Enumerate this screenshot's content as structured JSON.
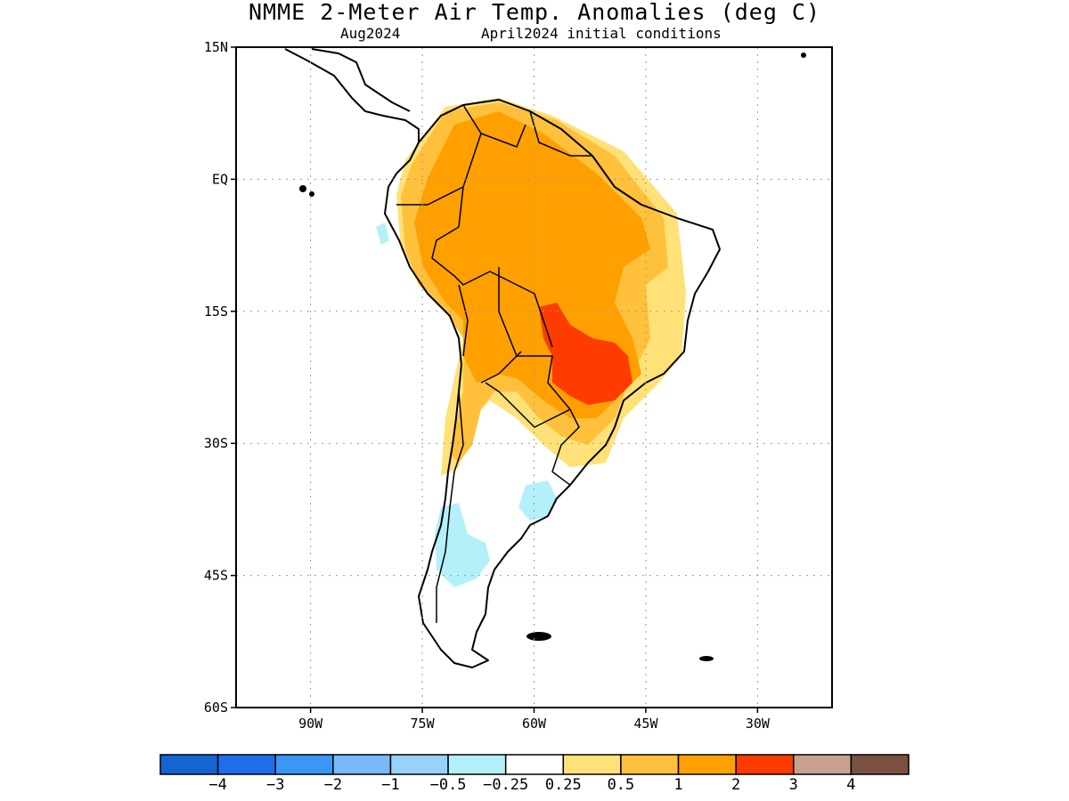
{
  "title": "NMME 2-Meter Air Temp. Anomalies (deg C)",
  "subtitle_left": "Aug2024",
  "subtitle_right": "April2024 initial conditions",
  "map": {
    "lon_range": [
      -100,
      -20
    ],
    "lat_range": [
      -60,
      15
    ],
    "lat_ticks": [
      {
        "value": 15,
        "label": "15N"
      },
      {
        "value": 0,
        "label": "EQ"
      },
      {
        "value": -15,
        "label": "15S"
      },
      {
        "value": -30,
        "label": "30S"
      },
      {
        "value": -45,
        "label": "45S"
      },
      {
        "value": -60,
        "label": "60S"
      }
    ],
    "lon_ticks": [
      {
        "value": -90,
        "label": "90W"
      },
      {
        "value": -75,
        "label": "75W"
      },
      {
        "value": -60,
        "label": "60W"
      },
      {
        "value": -45,
        "label": "45W"
      },
      {
        "value": -30,
        "label": "30W"
      }
    ],
    "grid": "dotted"
  },
  "colorbar": {
    "colors": [
      "#1464d2",
      "#1e6eeb",
      "#3c96f5",
      "#78b9fa",
      "#96d2fa",
      "#b4f0fa",
      "#ffffff",
      "#ffe178",
      "#ffc03c",
      "#ffa000",
      "#ff3c00",
      "#c8a090",
      "#7a5040"
    ],
    "labels": [
      "−4",
      "−3",
      "−2",
      "−1",
      "−0.5",
      "−0.25",
      "0.25",
      "0.5",
      "1",
      "2",
      "3",
      "4"
    ]
  },
  "regions": [
    {
      "name": "warm-anomaly-0.5",
      "level": "0.5 to 1",
      "color": "#ffe178"
    },
    {
      "name": "warm-anomaly-1",
      "level": "1 to 2",
      "color": "#ffc03c"
    },
    {
      "name": "warm-anomaly-2",
      "level": "2 to 3",
      "color": "#ffa000"
    },
    {
      "name": "warm-anomaly-3",
      "level": "3 to 4",
      "color": "#ff3c00"
    },
    {
      "name": "cool-anomaly-0.25",
      "level": "-0.5 to -0.25",
      "color": "#b4f0fa"
    }
  ]
}
